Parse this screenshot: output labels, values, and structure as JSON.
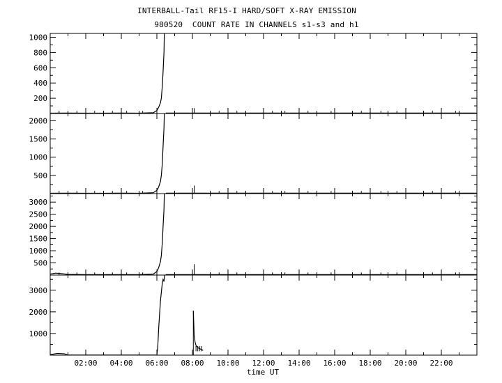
{
  "title_line1": "INTERBALL-Tail RF15-I HARD/SOFT X-RAY EMISSION",
  "title_line2": "980520  COUNT RATE IN CHANNELS s1-s3 and h1",
  "chart_data": {
    "type": "line",
    "xlabel": "time UT",
    "xlim": [
      0,
      24
    ],
    "x_tick_labels": [
      "02:00",
      "04:00",
      "06:00",
      "08:00",
      "10:00",
      "12:00",
      "14:00",
      "16:00",
      "18:00",
      "20:00",
      "22:00"
    ],
    "panels": [
      {
        "channel": "s1",
        "ylim": [
          0,
          1050
        ],
        "yticks": [
          200,
          400,
          600,
          800,
          1000
        ],
        "ytick_labels": [
          "200",
          "400",
          "600",
          "800",
          "1000"
        ],
        "series": {
          "x": [
            0,
            1,
            2,
            3,
            4,
            5,
            5.8,
            6.0,
            6.1,
            6.2,
            6.25,
            6.3,
            6.35,
            6.4,
            6.42
          ],
          "y": [
            5,
            6,
            5,
            5,
            6,
            5,
            10,
            40,
            80,
            140,
            200,
            350,
            550,
            800,
            1050
          ]
        },
        "spikes": [
          {
            "x": 8.1,
            "y": 70
          },
          {
            "x": 14,
            "y": 20
          }
        ]
      },
      {
        "channel": "s2",
        "ylim": [
          0,
          2200
        ],
        "yticks": [
          500,
          1000,
          1500,
          2000
        ],
        "ytick_labels": [
          "500",
          "1000",
          "1500",
          "2000"
        ],
        "series": {
          "x": [
            0,
            1,
            2,
            3,
            4,
            5,
            5.8,
            6.0,
            6.1,
            6.2,
            6.25,
            6.3,
            6.35,
            6.4,
            6.42
          ],
          "y": [
            10,
            12,
            10,
            10,
            12,
            10,
            25,
            90,
            180,
            330,
            500,
            800,
            1300,
            1800,
            2200
          ]
        },
        "spikes": [
          {
            "x": 8.1,
            "y": 220
          },
          {
            "x": 14,
            "y": 40
          }
        ]
      },
      {
        "channel": "s3",
        "ylim": [
          0,
          3350
        ],
        "yticks": [
          500,
          1000,
          1500,
          2000,
          2500,
          3000
        ],
        "ytick_labels": [
          "500",
          "1000",
          "1500",
          "2000",
          "2500",
          "3000"
        ],
        "series": {
          "x": [
            0,
            0.3,
            0.6,
            1,
            2,
            3,
            4,
            5,
            5.8,
            6.0,
            6.1,
            6.2,
            6.25,
            6.3,
            6.35,
            6.4,
            6.42
          ],
          "y": [
            40,
            80,
            60,
            30,
            20,
            20,
            20,
            20,
            40,
            150,
            300,
            550,
            800,
            1300,
            2000,
            2700,
            3350
          ]
        },
        "spikes": [
          {
            "x": 8.1,
            "y": 450
          },
          {
            "x": 14,
            "y": 60
          }
        ]
      },
      {
        "channel": "h1",
        "ylim": [
          0,
          3700
        ],
        "yticks": [
          1000,
          2000,
          3000
        ],
        "ytick_labels": [
          "1000",
          "2000",
          "3000"
        ],
        "series": {
          "x": [
            0,
            0.4,
            0.8,
            1.0,
            6.0,
            6.05,
            6.1,
            6.2,
            6.3,
            6.35,
            6.4,
            6.42,
            6.45
          ],
          "y": [
            20,
            80,
            60,
            5,
            5,
            400,
            1200,
            2500,
            3300,
            3500,
            3400,
            3600,
            3700
          ]
        },
        "decay": {
          "x": [
            8.05,
            8.1,
            8.15,
            8.2,
            8.3,
            8.4,
            8.5,
            8.6
          ],
          "y": [
            2050,
            900,
            600,
            450,
            350,
            300,
            260,
            220
          ]
        },
        "spikes": []
      }
    ]
  }
}
